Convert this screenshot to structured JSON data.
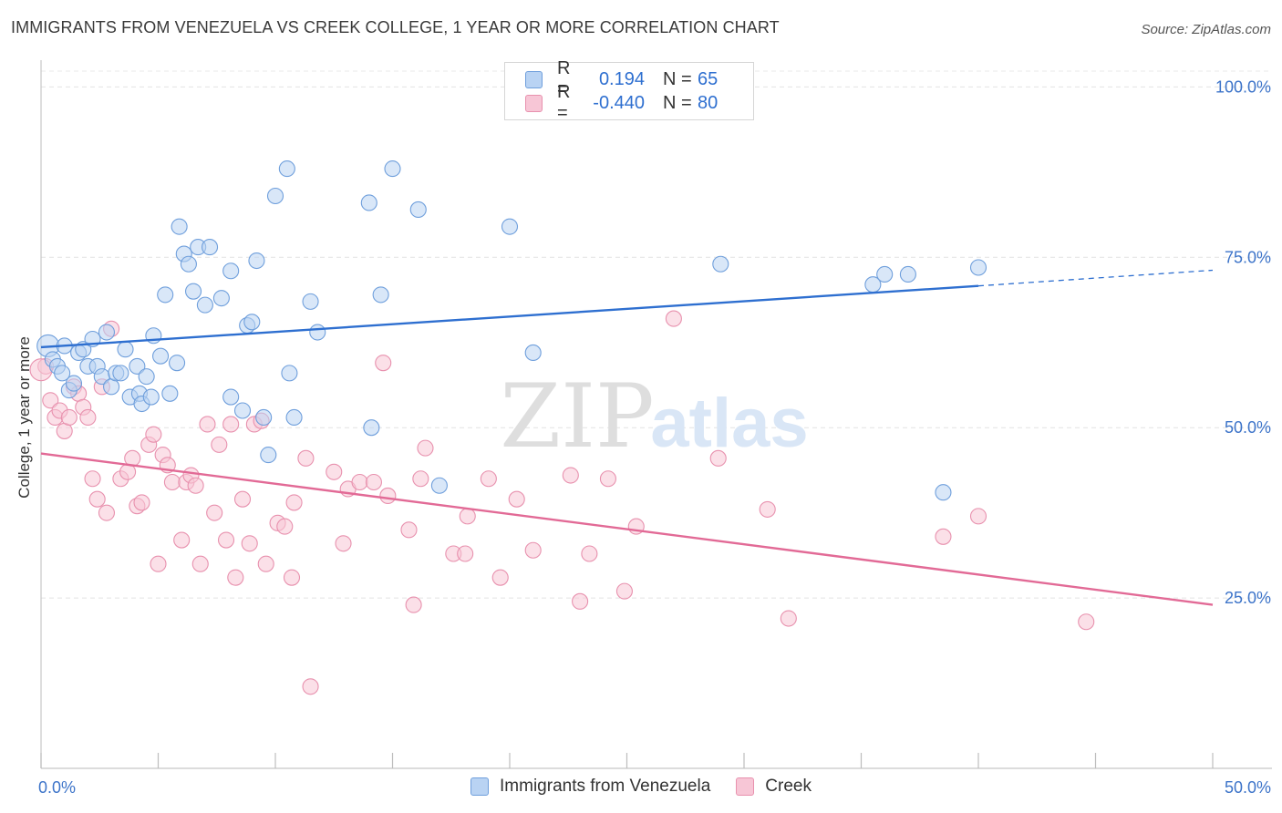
{
  "title": "IMMIGRANTS FROM VENEZUELA VS CREEK COLLEGE, 1 YEAR OR MORE CORRELATION CHART",
  "source": "Source: ZipAtlas.com",
  "watermark": {
    "zip": "ZIP",
    "atlas": "atlas"
  },
  "legend": {
    "r_label": "R =",
    "n_label": "N =",
    "rows": [
      {
        "r": "0.194",
        "n": "65"
      },
      {
        "r": "-0.440",
        "n": "80"
      }
    ]
  },
  "colors": {
    "blue_fill": "#b9d3f3",
    "blue_stroke": "#6f9fdc",
    "blue_line": "#2e6fd0",
    "pink_fill": "#f7c6d6",
    "pink_stroke": "#e891ae",
    "pink_line": "#e26a96",
    "tick_label": "#3d74c9"
  },
  "chart_data": {
    "type": "scatter",
    "xlabel": "",
    "ylabel": "College, 1 year or more",
    "xlim": [
      0,
      50
    ],
    "ylim": [
      0,
      105
    ],
    "x_tick_labels": [
      {
        "value": 0,
        "label": "0.0%"
      },
      {
        "value": 50,
        "label": "50.0%"
      }
    ],
    "y_tick_labels": [
      {
        "value": 100,
        "label": "100.0%"
      },
      {
        "value": 75,
        "label": "75.0%"
      },
      {
        "value": 50,
        "label": "50.0%"
      },
      {
        "value": 25,
        "label": "25.0%"
      }
    ],
    "grid": true,
    "legend_position": "bottom",
    "series": [
      {
        "name": "Immigrants from Venezuela",
        "color_key": "blue",
        "trend": {
          "x_start": 0,
          "y_start": 61.8,
          "x_solid_end": 40,
          "y_solid_end": 70.8,
          "x_end": 50,
          "y_end": 73.1
        },
        "points": [
          [
            0.3,
            62.0
          ],
          [
            0.5,
            60.0
          ],
          [
            0.7,
            59.0
          ],
          [
            0.9,
            58.0
          ],
          [
            1.0,
            62.0
          ],
          [
            1.2,
            55.5
          ],
          [
            1.4,
            56.5
          ],
          [
            1.6,
            61.0
          ],
          [
            1.8,
            61.5
          ],
          [
            2.0,
            59.0
          ],
          [
            2.2,
            63.0
          ],
          [
            2.4,
            59.0
          ],
          [
            2.6,
            57.5
          ],
          [
            2.8,
            64.0
          ],
          [
            3.0,
            56.0
          ],
          [
            3.2,
            58.0
          ],
          [
            3.4,
            58.0
          ],
          [
            3.6,
            61.5
          ],
          [
            3.8,
            54.5
          ],
          [
            4.1,
            59.0
          ],
          [
            4.2,
            55.0
          ],
          [
            4.3,
            53.5
          ],
          [
            4.5,
            57.5
          ],
          [
            4.7,
            54.5
          ],
          [
            4.8,
            63.5
          ],
          [
            5.1,
            60.5
          ],
          [
            5.3,
            69.5
          ],
          [
            5.5,
            55.0
          ],
          [
            5.8,
            59.5
          ],
          [
            5.9,
            79.5
          ],
          [
            6.1,
            75.5
          ],
          [
            6.3,
            74.0
          ],
          [
            6.5,
            70.0
          ],
          [
            6.7,
            76.5
          ],
          [
            7.0,
            68.0
          ],
          [
            7.2,
            76.5
          ],
          [
            7.7,
            69.0
          ],
          [
            8.1,
            73.0
          ],
          [
            8.1,
            54.5
          ],
          [
            8.6,
            52.5
          ],
          [
            8.8,
            65.0
          ],
          [
            9.0,
            65.5
          ],
          [
            9.2,
            74.5
          ],
          [
            9.5,
            51.5
          ],
          [
            9.7,
            46.0
          ],
          [
            10.0,
            84.0
          ],
          [
            10.5,
            88.0
          ],
          [
            10.6,
            58.0
          ],
          [
            10.8,
            51.5
          ],
          [
            11.5,
            68.5
          ],
          [
            11.8,
            64.0
          ],
          [
            14.0,
            83.0
          ],
          [
            14.1,
            50.0
          ],
          [
            14.5,
            69.5
          ],
          [
            15.0,
            88.0
          ],
          [
            16.1,
            82.0
          ],
          [
            17.0,
            41.5
          ],
          [
            20.0,
            79.5
          ],
          [
            21.0,
            61.0
          ],
          [
            29.0,
            74.0
          ],
          [
            35.5,
            71.0
          ],
          [
            36.0,
            72.5
          ],
          [
            37.0,
            72.5
          ],
          [
            38.5,
            40.5
          ],
          [
            40.0,
            73.5
          ]
        ]
      },
      {
        "name": "Creek",
        "color_key": "pink",
        "trend": {
          "x_start": 0,
          "y_start": 46.2,
          "x_end": 50,
          "y_end": 24.0
        },
        "points": [
          [
            0.2,
            59.0
          ],
          [
            0.4,
            54.0
          ],
          [
            0.6,
            51.5
          ],
          [
            0.8,
            52.5
          ],
          [
            1.0,
            49.5
          ],
          [
            1.2,
            51.5
          ],
          [
            1.4,
            56.0
          ],
          [
            1.6,
            55.0
          ],
          [
            1.8,
            53.0
          ],
          [
            2.0,
            51.5
          ],
          [
            2.2,
            42.5
          ],
          [
            2.4,
            39.5
          ],
          [
            2.6,
            56.0
          ],
          [
            2.8,
            37.5
          ],
          [
            3.0,
            64.5
          ],
          [
            3.4,
            42.5
          ],
          [
            3.7,
            43.5
          ],
          [
            3.9,
            45.5
          ],
          [
            4.1,
            38.5
          ],
          [
            4.3,
            39.0
          ],
          [
            4.6,
            47.5
          ],
          [
            4.8,
            49.0
          ],
          [
            5.0,
            30.0
          ],
          [
            5.2,
            46.0
          ],
          [
            5.4,
            44.5
          ],
          [
            5.6,
            42.0
          ],
          [
            6.0,
            33.5
          ],
          [
            6.2,
            42.0
          ],
          [
            6.4,
            43.0
          ],
          [
            6.6,
            41.5
          ],
          [
            6.8,
            30.0
          ],
          [
            7.1,
            50.5
          ],
          [
            7.4,
            37.5
          ],
          [
            7.6,
            47.5
          ],
          [
            7.9,
            33.5
          ],
          [
            8.1,
            50.5
          ],
          [
            8.3,
            28.0
          ],
          [
            8.6,
            39.5
          ],
          [
            8.9,
            33.0
          ],
          [
            9.1,
            50.5
          ],
          [
            9.4,
            51.0
          ],
          [
            9.6,
            30.0
          ],
          [
            10.1,
            36.0
          ],
          [
            10.4,
            35.5
          ],
          [
            10.7,
            28.0
          ],
          [
            10.8,
            39.0
          ],
          [
            11.3,
            45.5
          ],
          [
            11.5,
            12.0
          ],
          [
            12.5,
            43.5
          ],
          [
            12.9,
            33.0
          ],
          [
            13.1,
            41.0
          ],
          [
            13.6,
            42.0
          ],
          [
            14.2,
            42.0
          ],
          [
            14.6,
            59.5
          ],
          [
            14.8,
            40.0
          ],
          [
            15.7,
            35.0
          ],
          [
            15.9,
            24.0
          ],
          [
            16.2,
            42.5
          ],
          [
            16.4,
            47.0
          ],
          [
            17.6,
            31.5
          ],
          [
            18.1,
            31.5
          ],
          [
            18.2,
            37.0
          ],
          [
            19.1,
            42.5
          ],
          [
            19.6,
            28.0
          ],
          [
            20.3,
            39.5
          ],
          [
            21.0,
            32.0
          ],
          [
            22.6,
            43.0
          ],
          [
            23.0,
            24.5
          ],
          [
            23.4,
            31.5
          ],
          [
            24.2,
            42.5
          ],
          [
            24.9,
            26.0
          ],
          [
            25.4,
            35.5
          ],
          [
            27.0,
            66.0
          ],
          [
            28.9,
            45.5
          ],
          [
            31.0,
            38.0
          ],
          [
            31.9,
            22.0
          ],
          [
            38.5,
            34.0
          ],
          [
            40.0,
            37.0
          ],
          [
            44.6,
            21.5
          ],
          [
            0.0,
            58.5
          ]
        ]
      }
    ]
  }
}
